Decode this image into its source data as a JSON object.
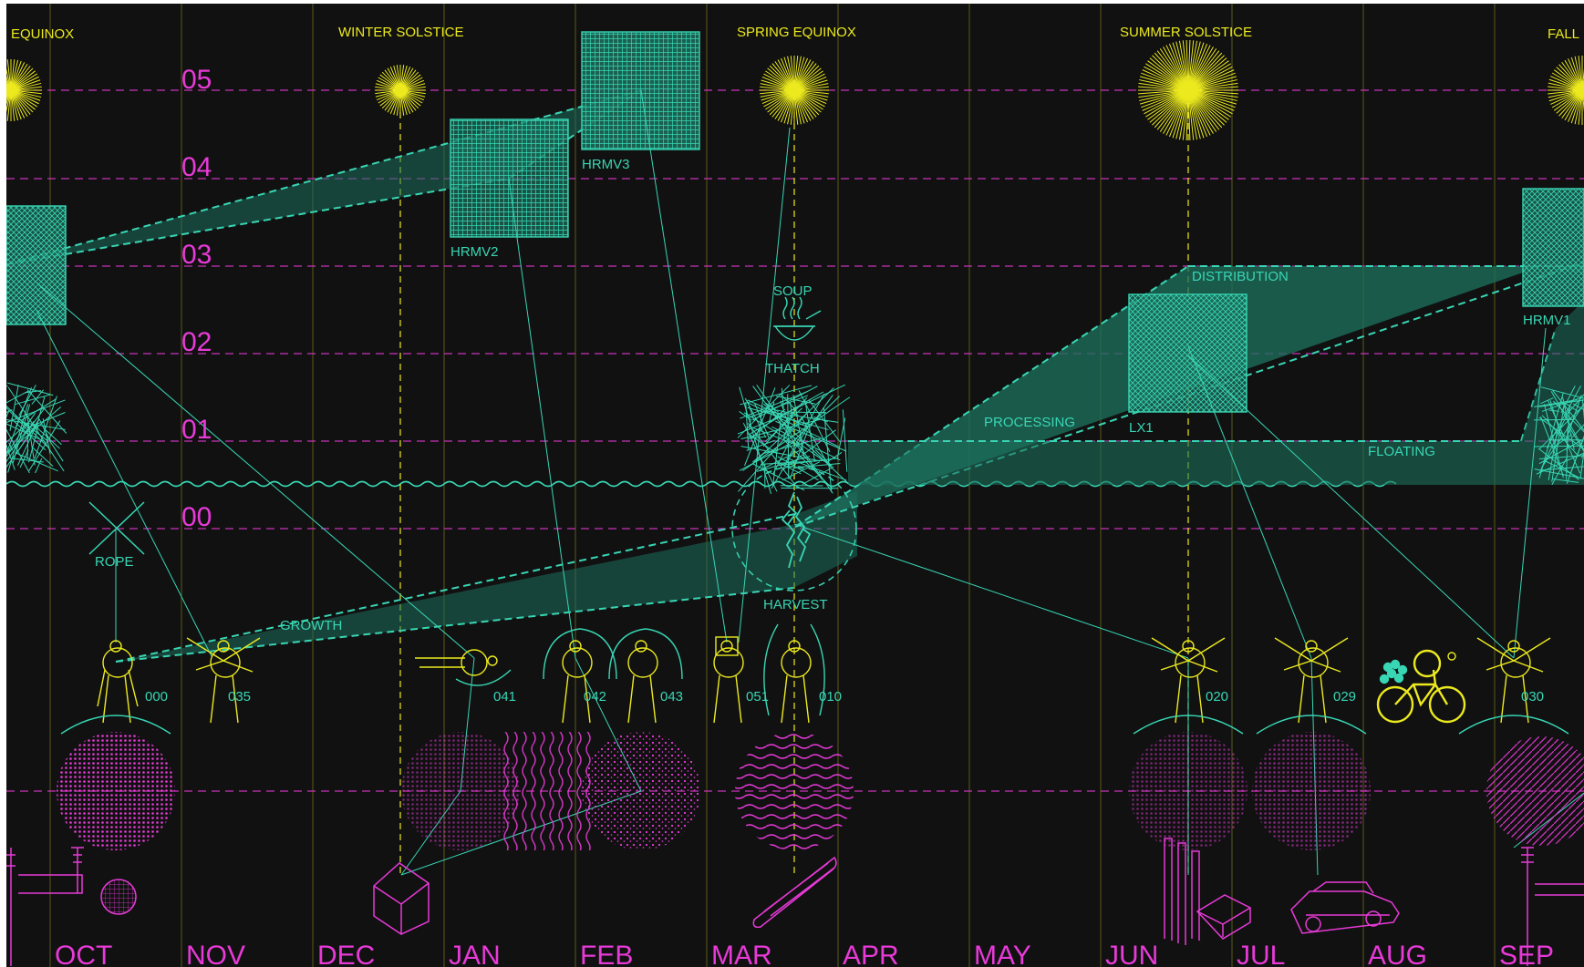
{
  "colors": {
    "background": "#111111",
    "magenta": "#e83ad8",
    "yellow": "#ecea1e",
    "teal": "#38d6b4",
    "teal_fill": "#1d6f5c",
    "grid_yellow": "#5b5a1a",
    "border": "#ffffff"
  },
  "sky_events": [
    {
      "label": "EQUINOX"
    },
    {
      "label": "WINTER SOLSTICE"
    },
    {
      "label": "SPRING EQUINOX"
    },
    {
      "label": "SUMMER SOLSTICE"
    },
    {
      "label": "FALL"
    }
  ],
  "levels": [
    "05",
    "04",
    "03",
    "02",
    "01",
    "00"
  ],
  "months": [
    "OCT",
    "NOV",
    "DEC",
    "JAN",
    "FEB",
    "MAR",
    "APR",
    "MAY",
    "JUN",
    "JUL",
    "AUG",
    "SEP"
  ],
  "stages": {
    "growth": "GROWTH",
    "harvest": "HARVEST",
    "processing": "PROCESSING",
    "distribution": "DISTRIBUTION",
    "floating": "FLOATING"
  },
  "materials": {
    "rope": "ROPE",
    "soup": "SOUP",
    "thatch": "THATCH"
  },
  "blocks": {
    "hrmv1": "HRMV1",
    "hrmv2": "HRMV2",
    "hrmv3": "HRMV3",
    "lx1": "LX1"
  },
  "figures": [
    "000",
    "035",
    "041",
    "042",
    "043",
    "051",
    "010",
    "020",
    "029",
    "030"
  ],
  "icons": [
    "sun-icon",
    "soup-bowl-icon",
    "house-icon",
    "canoe-icon",
    "car-icon",
    "bicycle-icon",
    "power-pylon-icon",
    "factory-icon",
    "seaweed-tangle-icon",
    "kelp-icon",
    "rope-icon"
  ]
}
